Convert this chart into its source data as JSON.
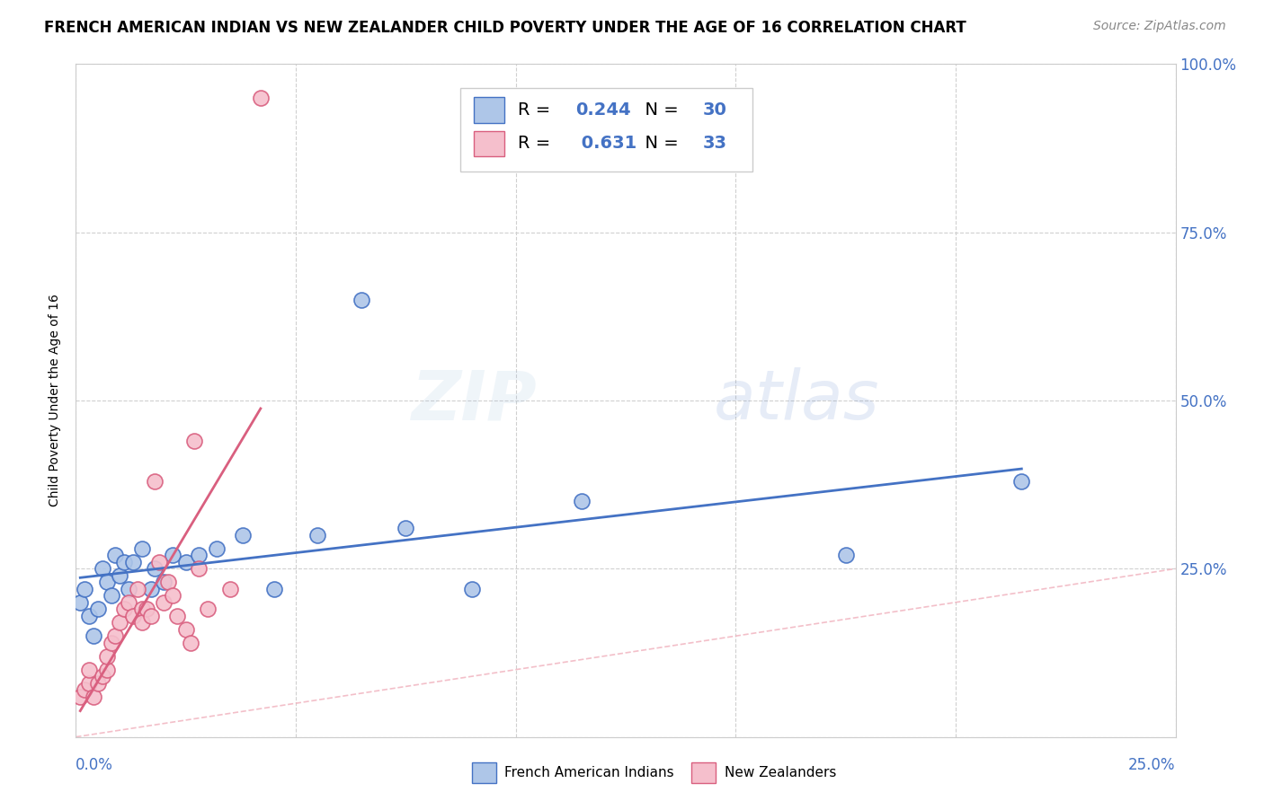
{
  "title": "FRENCH AMERICAN INDIAN VS NEW ZEALANDER CHILD POVERTY UNDER THE AGE OF 16 CORRELATION CHART",
  "source": "Source: ZipAtlas.com",
  "ylabel": "Child Poverty Under the Age of 16",
  "x_min": 0.0,
  "x_max": 0.25,
  "y_min": 0.0,
  "y_max": 1.0,
  "legend_R_blue": "0.244",
  "legend_N_blue": "30",
  "legend_R_pink": "0.631",
  "legend_N_pink": "33",
  "legend_label_blue": "French American Indians",
  "legend_label_pink": "New Zealanders",
  "blue_color": "#aec6e8",
  "pink_color": "#f5bfcc",
  "blue_line_color": "#4472c4",
  "pink_line_color": "#d95f7f",
  "diag_line_color": "#f0b0bc",
  "watermark_zip": "ZIP",
  "watermark_atlas": "atlas",
  "blue_scatter_x": [
    0.001,
    0.002,
    0.003,
    0.004,
    0.005,
    0.006,
    0.007,
    0.008,
    0.009,
    0.01,
    0.011,
    0.012,
    0.013,
    0.015,
    0.017,
    0.018,
    0.02,
    0.022,
    0.025,
    0.028,
    0.032,
    0.038,
    0.045,
    0.055,
    0.065,
    0.075,
    0.09,
    0.115,
    0.175,
    0.215
  ],
  "blue_scatter_y": [
    0.2,
    0.22,
    0.18,
    0.15,
    0.19,
    0.25,
    0.23,
    0.21,
    0.27,
    0.24,
    0.26,
    0.22,
    0.26,
    0.28,
    0.22,
    0.25,
    0.23,
    0.27,
    0.26,
    0.27,
    0.28,
    0.3,
    0.22,
    0.3,
    0.65,
    0.31,
    0.22,
    0.35,
    0.27,
    0.38
  ],
  "pink_scatter_x": [
    0.001,
    0.002,
    0.003,
    0.003,
    0.004,
    0.005,
    0.006,
    0.007,
    0.007,
    0.008,
    0.009,
    0.01,
    0.011,
    0.012,
    0.013,
    0.014,
    0.015,
    0.015,
    0.016,
    0.017,
    0.018,
    0.019,
    0.02,
    0.021,
    0.022,
    0.023,
    0.025,
    0.026,
    0.027,
    0.028,
    0.03,
    0.035,
    0.042
  ],
  "pink_scatter_y": [
    0.06,
    0.07,
    0.08,
    0.1,
    0.06,
    0.08,
    0.09,
    0.1,
    0.12,
    0.14,
    0.15,
    0.17,
    0.19,
    0.2,
    0.18,
    0.22,
    0.19,
    0.17,
    0.19,
    0.18,
    0.38,
    0.26,
    0.2,
    0.23,
    0.21,
    0.18,
    0.16,
    0.14,
    0.44,
    0.25,
    0.19,
    0.22,
    0.95
  ],
  "title_fontsize": 12,
  "source_fontsize": 10,
  "legend_fontsize": 14,
  "watermark_fontsize_zip": 55,
  "watermark_fontsize_atlas": 55,
  "watermark_alpha": 0.13,
  "marker_size": 150
}
